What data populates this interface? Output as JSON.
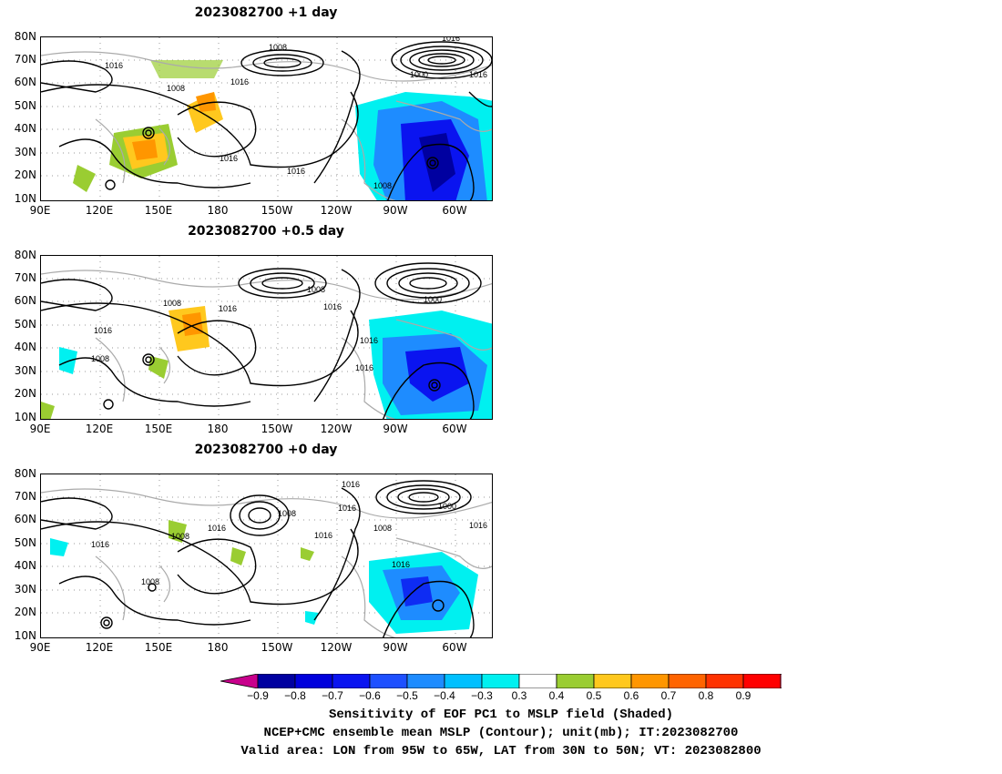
{
  "panels": [
    {
      "title": "2023082700  +1 day"
    },
    {
      "title": "2023082700  +0.5 day"
    },
    {
      "title": "2023082700  +0 day"
    }
  ],
  "lat_labels": [
    "80N",
    "70N",
    "60N",
    "50N",
    "40N",
    "30N",
    "20N",
    "10N"
  ],
  "lon_labels": [
    "90E",
    "120E",
    "150E",
    "180",
    "150W",
    "120W",
    "90W",
    "60W"
  ],
  "contour_labels": {
    "panel1": [
      "1008",
      "1000",
      "1016",
      "1016",
      "1008",
      "1016",
      "1016",
      "1016",
      "1008",
      "1016"
    ],
    "panel2": [
      "1008",
      "1008",
      "1016",
      "1016",
      "1016",
      "1000",
      "1016",
      "1008",
      "1016"
    ],
    "panel3": [
      "1016",
      "1000",
      "1016",
      "1008",
      "1016",
      "1008",
      "1016",
      "1008",
      "1016",
      "1016",
      "1008",
      "1016"
    ]
  },
  "colorbar": {
    "labels": [
      "-0.9",
      "-0.8",
      "-0.7",
      "-0.6",
      "-0.5",
      "-0.4",
      "-0.3",
      "0.3",
      "0.4",
      "0.5",
      "0.6",
      "0.7",
      "0.8",
      "0.9"
    ],
    "colors": [
      "#0000a0",
      "#0000dc",
      "#0a14f0",
      "#1e50ff",
      "#1e8cff",
      "#00c0ff",
      "#00f0f0",
      "#ffffff",
      "#9acd32",
      "#ffc81e",
      "#ff9600",
      "#ff6400",
      "#ff3200",
      "#ff0000"
    ],
    "under_color": "#c8008c",
    "over_color": "#ff9ec8"
  },
  "captions": [
    "Sensitivity of EOF PC1 to MSLP field (Shaded)",
    "NCEP+CMC ensemble mean MSLP (Contour); unit(mb); IT:2023082700",
    "Valid area: LON from 95W to 65W, LAT from 30N to 50N; VT: 2023082800"
  ]
}
